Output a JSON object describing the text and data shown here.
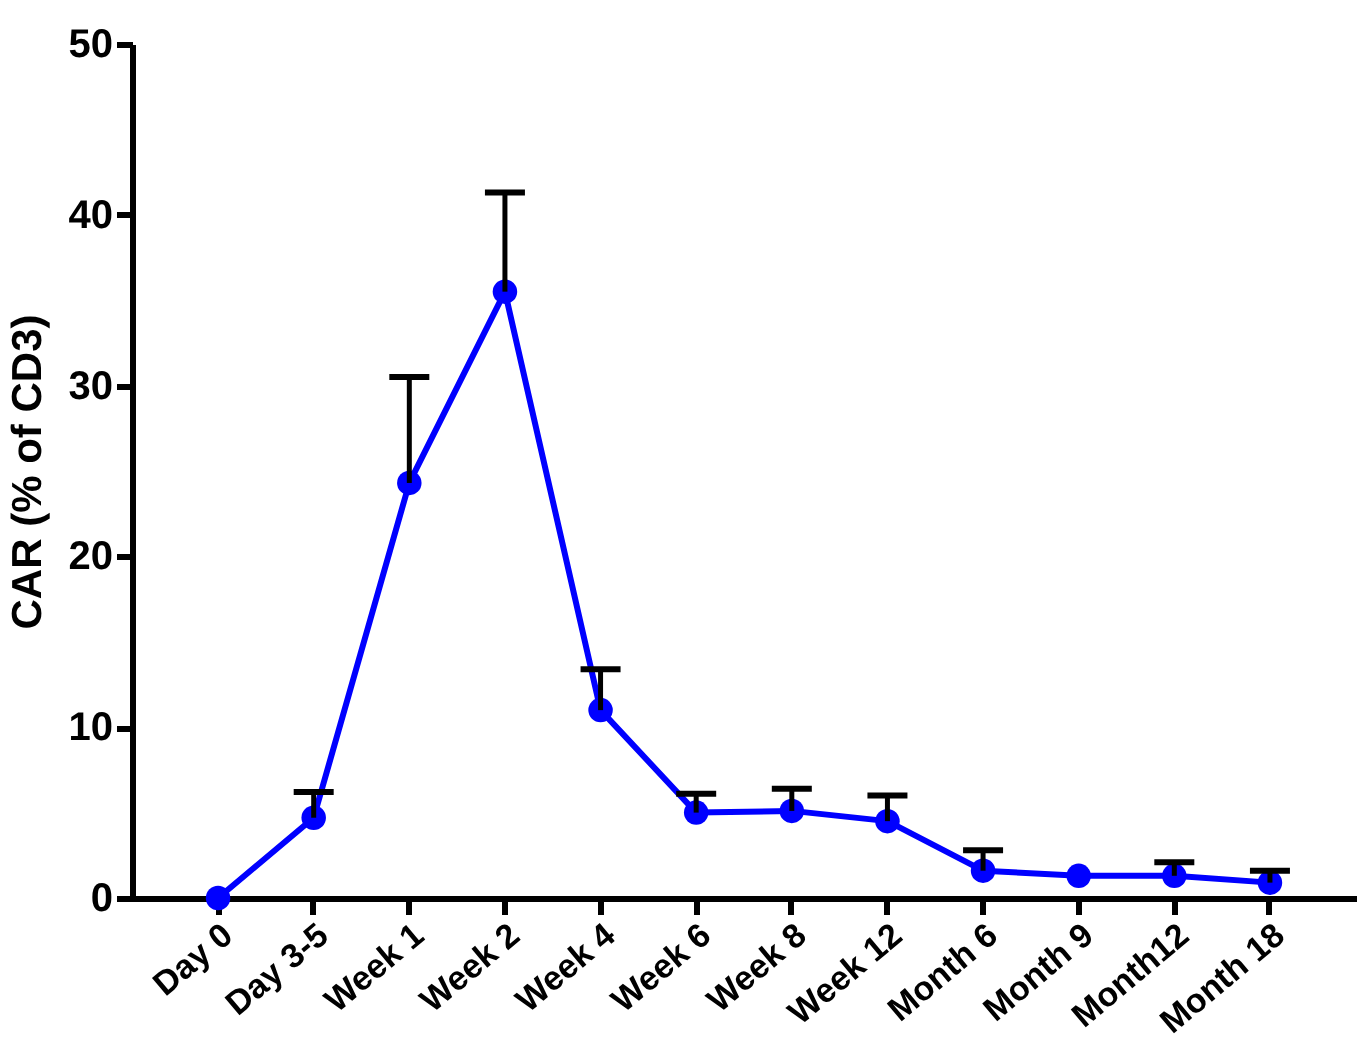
{
  "chart_data": {
    "type": "line",
    "ylabel": "CAR (% of CD3)",
    "categories": [
      "Day 0",
      "Day 3-5",
      "Week 1",
      "Week 2",
      "Week 4",
      "Week 6",
      "Week 8",
      "Week 12",
      "Month 6",
      "Month 9",
      "Month12",
      "Month 18"
    ],
    "series": [
      {
        "color": "#0000ff",
        "values": [
          0,
          4.7,
          24.3,
          35.5,
          11.0,
          5.0,
          5.1,
          4.5,
          1.6,
          1.3,
          1.3,
          0.9
        ],
        "errors": [
          null,
          [
            4.7,
            6.2
          ],
          [
            24.3,
            30.5
          ],
          [
            35.5,
            41.3
          ],
          [
            11.0,
            13.4
          ],
          [
            5.0,
            6.1
          ],
          [
            5.1,
            6.4
          ],
          [
            4.5,
            6.0
          ],
          [
            1.6,
            2.8
          ],
          null,
          [
            1.3,
            2.1
          ],
          [
            0.9,
            1.6
          ]
        ]
      }
    ],
    "ylim": [
      0,
      50
    ],
    "yticks": [
      0,
      10,
      20,
      30,
      40,
      50
    ],
    "grid": false,
    "marker": "circle",
    "line_style": "solid"
  }
}
